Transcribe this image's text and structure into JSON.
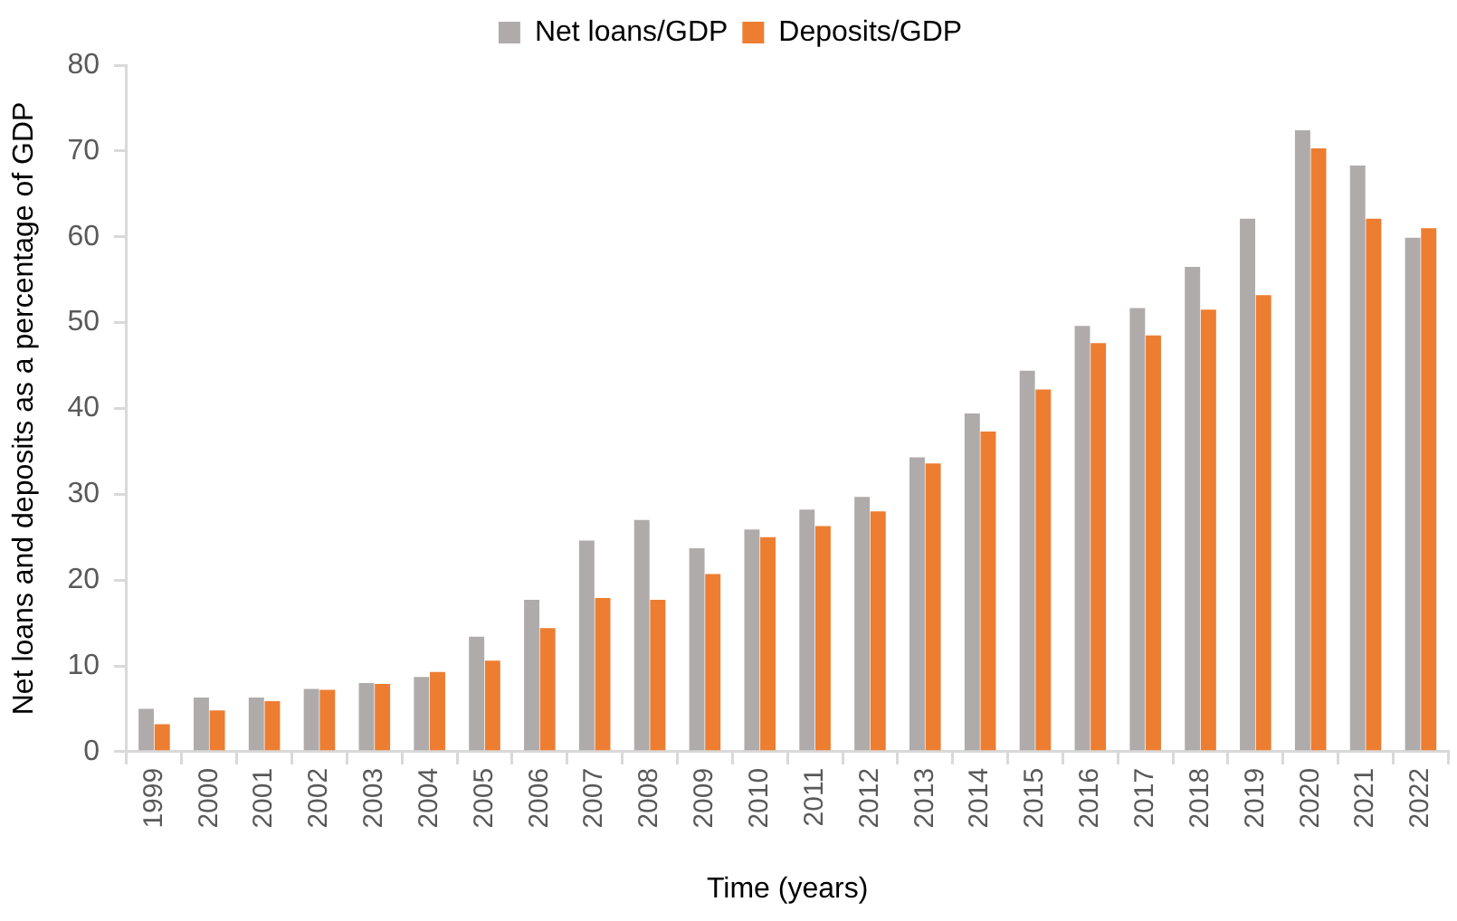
{
  "chart_data": {
    "type": "bar",
    "xlabel": "Time (years)",
    "ylabel": "Net loans and deposits as a percentage of GDP",
    "categories": [
      "1999",
      "2000",
      "2001",
      "2002",
      "2003",
      "2004",
      "2005",
      "2006",
      "2007",
      "2008",
      "2009",
      "2010",
      "2011",
      "2012",
      "2013",
      "2014",
      "2015",
      "2016",
      "2017",
      "2018",
      "2019",
      "2020",
      "2021",
      "2022"
    ],
    "series": [
      {
        "name": "Net loans/GDP",
        "color": "#afabab",
        "values": [
          5.0,
          6.3,
          6.3,
          7.3,
          8.0,
          8.7,
          13.4,
          17.7,
          24.6,
          27.0,
          23.7,
          25.9,
          28.2,
          29.7,
          34.3,
          39.4,
          44.4,
          49.6,
          51.7,
          56.5,
          62.1,
          72.4,
          68.3,
          59.9
        ]
      },
      {
        "name": "Deposits/GDP",
        "color": "#ed7d31",
        "values": [
          3.2,
          4.8,
          5.9,
          7.2,
          7.9,
          9.3,
          10.6,
          14.4,
          17.9,
          17.7,
          20.7,
          25.0,
          26.3,
          28.0,
          33.6,
          37.3,
          42.2,
          47.6,
          48.5,
          51.5,
          53.2,
          70.3,
          62.1,
          61.0
        ]
      }
    ],
    "ylim": [
      0,
      80
    ],
    "yticks": [
      0,
      10,
      20,
      30,
      40,
      50,
      60,
      70,
      80
    ],
    "grid": false,
    "legend": "top"
  }
}
